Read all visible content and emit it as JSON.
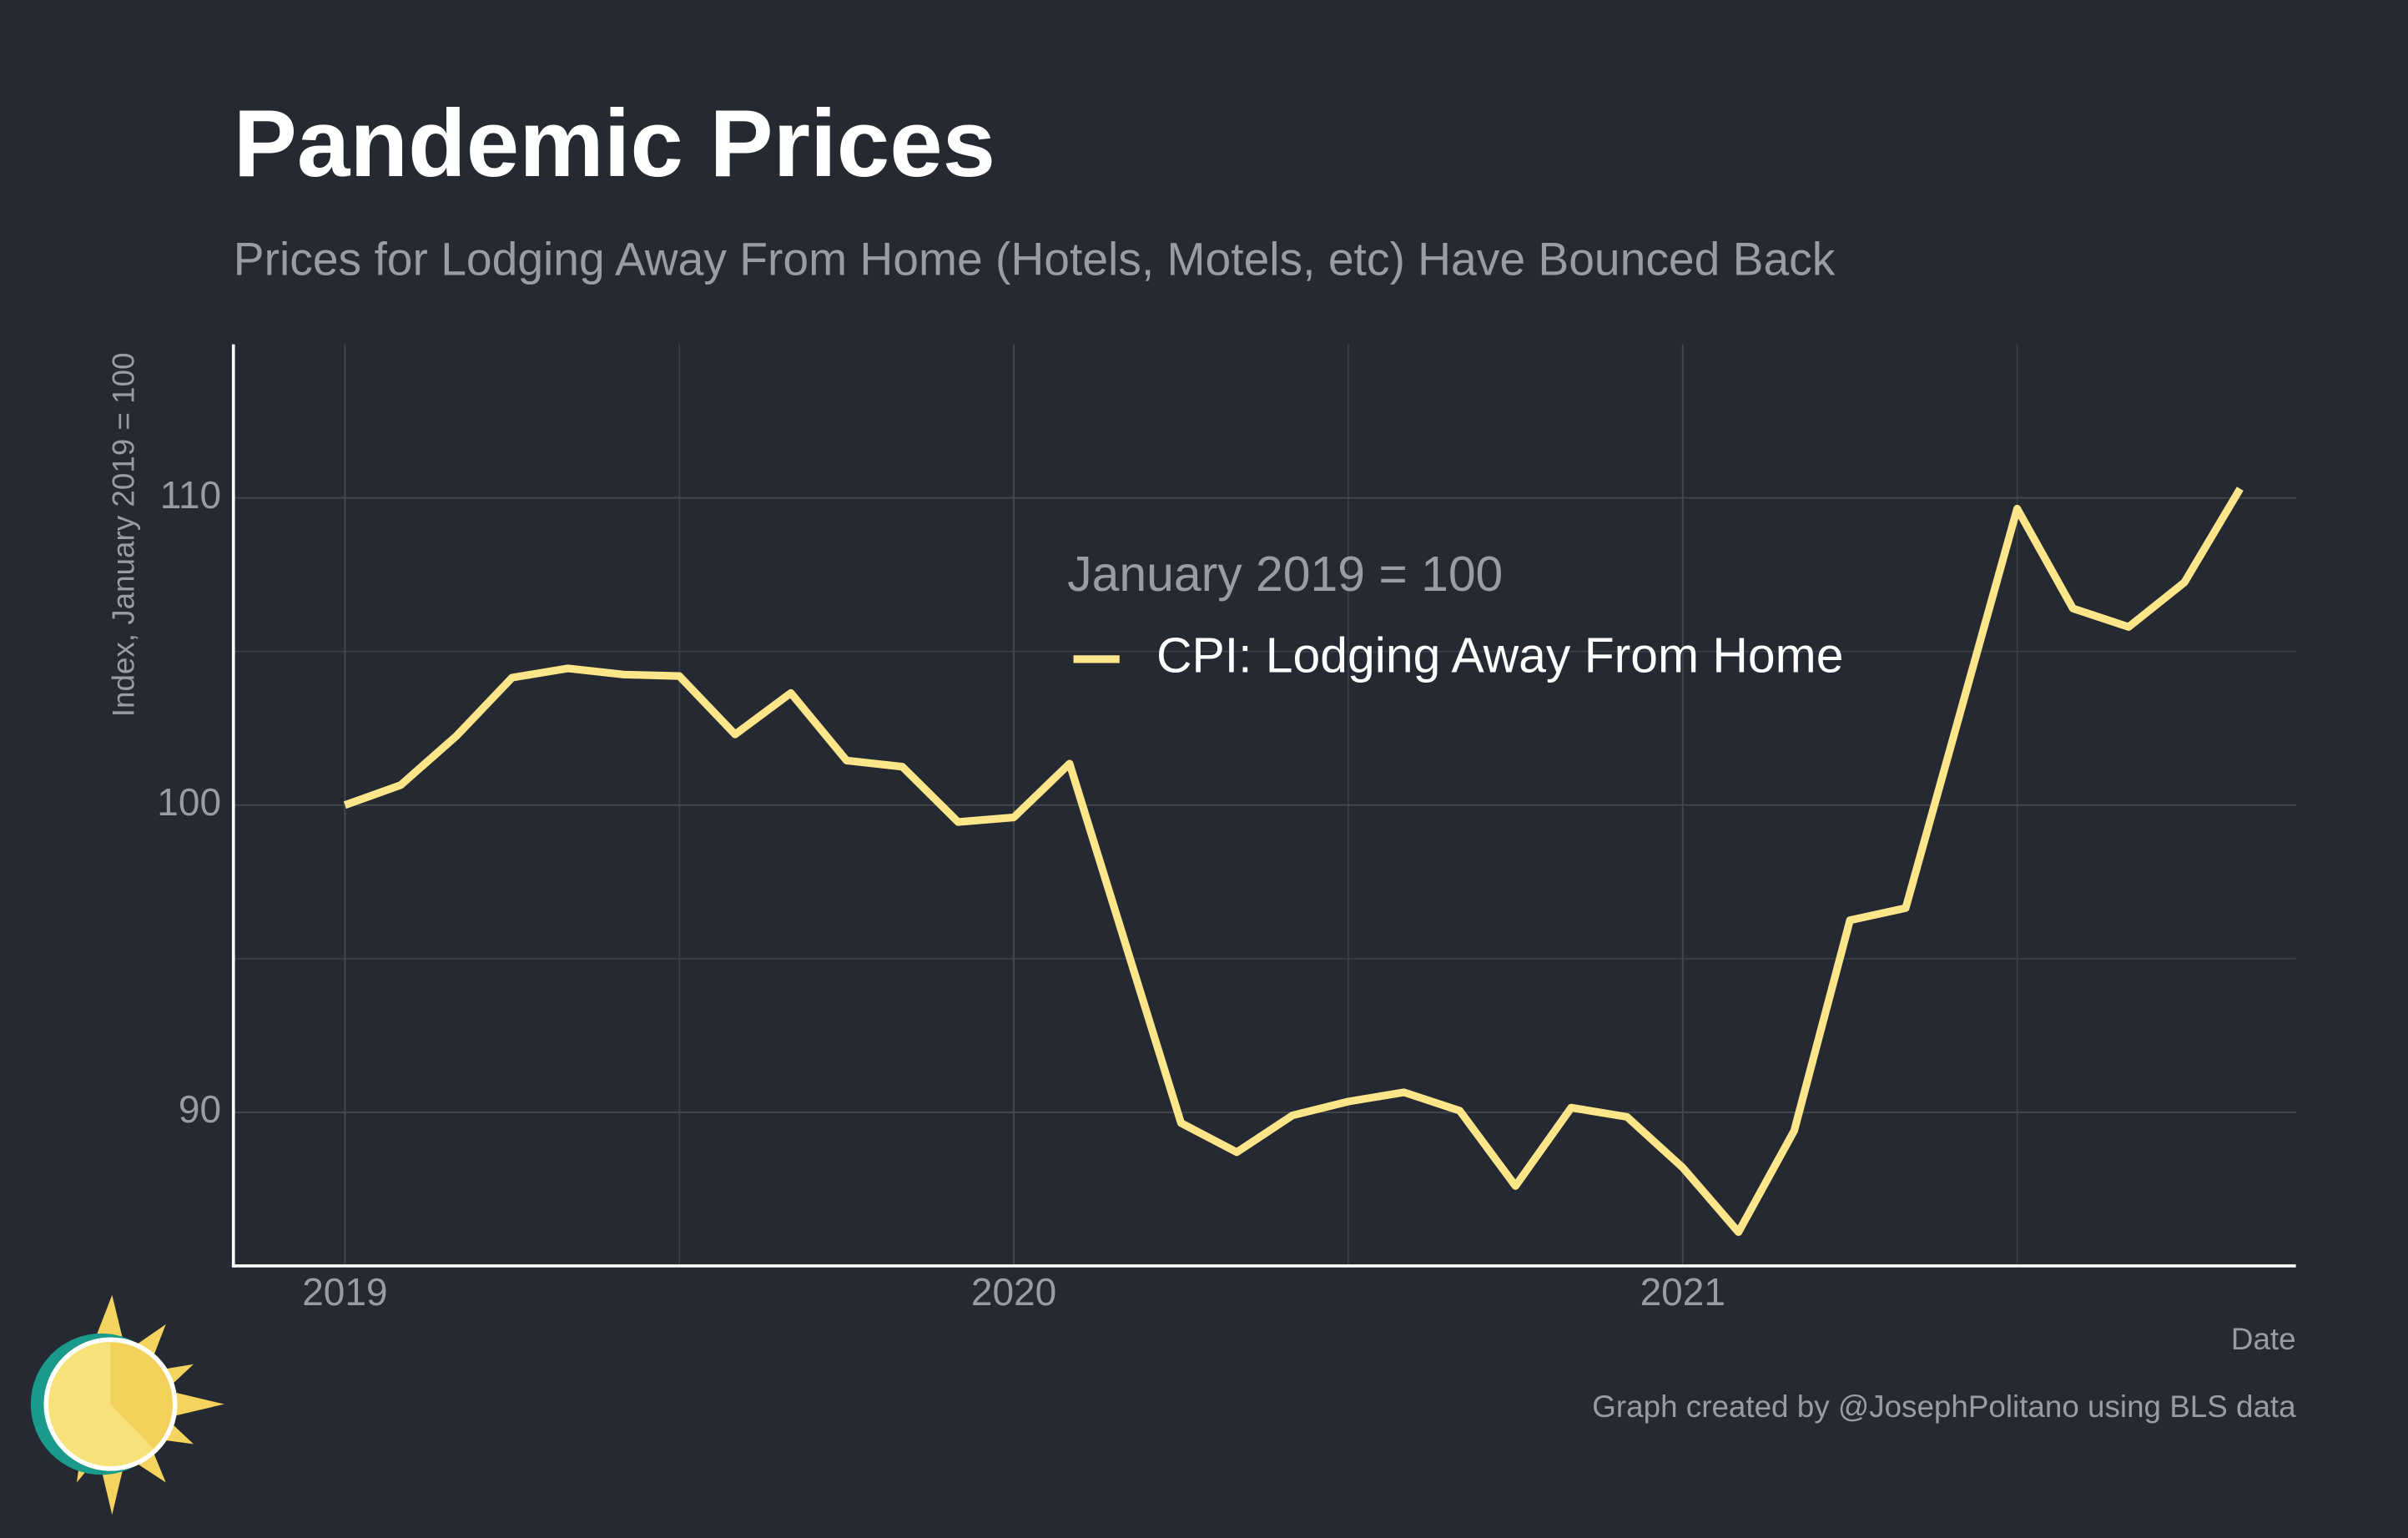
{
  "chart_data": {
    "type": "line",
    "title": "Pandemic Prices",
    "subtitle": "Prices for Lodging Away From Home (Hotels, Motels, etc) Have Bounced Back",
    "x_label": "Date",
    "y_label": "Index, January 2019 = 100",
    "caption": "Graph created by @JosephPolitano using BLS data",
    "legend_title": "January 2019 = 100",
    "legend": "top-center",
    "grid": true,
    "x": [
      "2019-01",
      "2019-02",
      "2019-03",
      "2019-04",
      "2019-05",
      "2019-06",
      "2019-07",
      "2019-08",
      "2019-09",
      "2019-10",
      "2019-11",
      "2019-12",
      "2020-01",
      "2020-02",
      "2020-03",
      "2020-04",
      "2020-05",
      "2020-06",
      "2020-07",
      "2020-08",
      "2020-09",
      "2020-10",
      "2020-11",
      "2020-12",
      "2021-01",
      "2021-02",
      "2021-03",
      "2021-04",
      "2021-05",
      "2021-06",
      "2021-07",
      "2021-08",
      "2021-09",
      "2021-10",
      "2021-11"
    ],
    "series": [
      {
        "name": "CPI: Lodging Away From Home",
        "color": "#fde68a",
        "values": [
          100,
          100.65,
          102.25,
          104.15,
          104.45,
          104.25,
          104.2,
          102.3,
          103.65,
          101.45,
          101.25,
          99.45,
          99.6,
          101.35,
          95.5,
          89.65,
          88.7,
          89.9,
          90.35,
          90.65,
          90.05,
          87.6,
          90.15,
          89.85,
          88.2,
          86.1,
          89.4,
          96.25,
          96.65,
          103.15,
          109.65,
          106.4,
          105.8,
          107.25,
          110.3
        ]
      }
    ],
    "xlim": [
      "2018-11",
      "2021-12"
    ],
    "xticks": [
      {
        "value": "2019-01",
        "label": "2019"
      },
      {
        "value": "2020-01",
        "label": "2020"
      },
      {
        "value": "2021-01",
        "label": "2021"
      }
    ],
    "ylim": [
      85,
      115
    ],
    "yticks": [
      90,
      100,
      110
    ]
  }
}
